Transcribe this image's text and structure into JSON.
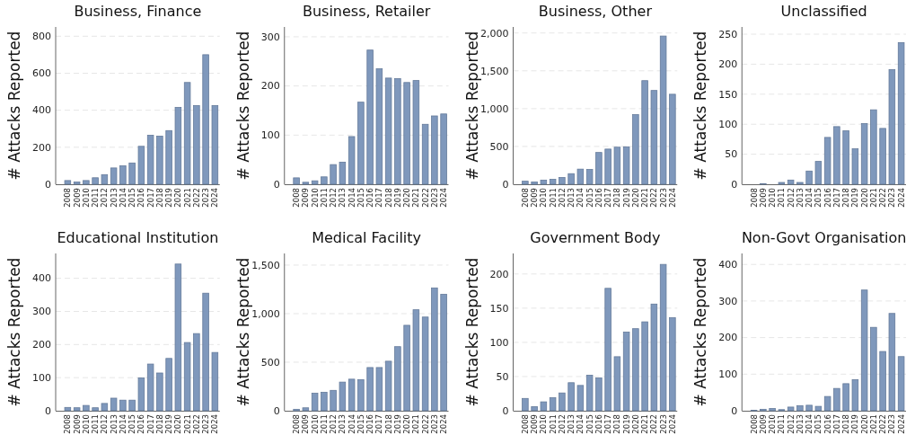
{
  "chart_data": [
    {
      "type": "bar",
      "title": "Business, Finance",
      "ylabel": "# Attacks Reported",
      "categories": [
        "2008",
        "2009",
        "2010",
        "2011",
        "2012",
        "2013",
        "2014",
        "2015",
        "2016",
        "2017",
        "2018",
        "2019",
        "2020",
        "2021",
        "2022",
        "2023",
        "2024"
      ],
      "values": [
        20,
        12,
        20,
        35,
        52,
        88,
        100,
        115,
        205,
        265,
        260,
        290,
        415,
        550,
        425,
        700,
        425
      ],
      "color": "#7892b8",
      "ylim": [
        0,
        850
      ],
      "yticks": [
        0,
        200,
        400,
        600,
        800
      ],
      "grid": "y"
    },
    {
      "type": "bar",
      "title": "Business, Retailer",
      "ylabel": "# Attacks Reported",
      "categories": [
        "2008",
        "2009",
        "2010",
        "2011",
        "2012",
        "2013",
        "2014",
        "2015",
        "2016",
        "2017",
        "2018",
        "2019",
        "2020",
        "2021",
        "2022",
        "2023",
        "2024"
      ],
      "values": [
        13,
        4,
        7,
        15,
        40,
        45,
        97,
        167,
        273,
        235,
        216,
        215,
        207,
        211,
        122,
        139,
        143
      ],
      "color": "#7892b8",
      "ylim": [
        0,
        320
      ],
      "yticks": [
        0,
        100,
        200,
        300
      ],
      "grid": "y"
    },
    {
      "type": "bar",
      "title": "Business, Other",
      "ylabel": "# Attacks Reported",
      "categories": [
        "2008",
        "2009",
        "2010",
        "2011",
        "2012",
        "2013",
        "2014",
        "2015",
        "2016",
        "2017",
        "2018",
        "2019",
        "2020",
        "2021",
        "2022",
        "2023",
        "2024"
      ],
      "values": [
        40,
        30,
        55,
        65,
        90,
        140,
        200,
        195,
        420,
        465,
        490,
        495,
        920,
        1370,
        1240,
        1960,
        1190
      ],
      "color": "#7892b8",
      "ylim": [
        0,
        2080
      ],
      "yticks": [
        0,
        500,
        {
          "value": 1000,
          "label": "1,000"
        },
        {
          "value": 1500,
          "label": "1,500"
        },
        {
          "value": 2000,
          "label": "2,000"
        }
      ],
      "grid": "y"
    },
    {
      "type": "bar",
      "title": "Unclassified",
      "ylabel": "# Attacks Reported",
      "categories": [
        "2008",
        "2009",
        "2010",
        "2011",
        "2012",
        "2013",
        "2014",
        "2015",
        "2016",
        "2017",
        "2018",
        "2019",
        "2020",
        "2021",
        "2022",
        "2023",
        "2024"
      ],
      "values": [
        0,
        1,
        0,
        3,
        7,
        3,
        22,
        38,
        78,
        96,
        89,
        59,
        101,
        124,
        93,
        191,
        236
      ],
      "color": "#7892b8",
      "ylim": [
        0,
        262
      ],
      "yticks": [
        0,
        50,
        100,
        150,
        200,
        250
      ],
      "grid": "y"
    },
    {
      "type": "bar",
      "title": "Educational Institution",
      "ylabel": "# Attacks Reported",
      "categories": [
        "2008",
        "2009",
        "2010",
        "2011",
        "2012",
        "2013",
        "2014",
        "2015",
        "2016",
        "2017",
        "2018",
        "2019",
        "2020",
        "2021",
        "2022",
        "2023",
        "2024"
      ],
      "values": [
        10,
        9,
        16,
        9,
        22,
        38,
        32,
        32,
        99,
        141,
        114,
        158,
        443,
        206,
        233,
        355,
        176
      ],
      "color": "#7892b8",
      "ylim": [
        0,
        475
      ],
      "yticks": [
        0,
        100,
        200,
        300,
        400
      ],
      "grid": "y"
    },
    {
      "type": "bar",
      "title": "Medical Facility",
      "ylabel": "# Attacks Reported",
      "categories": [
        "2008",
        "2009",
        "2010",
        "2011",
        "2012",
        "2013",
        "2014",
        "2015",
        "2016",
        "2017",
        "2018",
        "2019",
        "2020",
        "2021",
        "2022",
        "2023",
        "2024"
      ],
      "values": [
        15,
        30,
        180,
        190,
        210,
        295,
        325,
        320,
        445,
        445,
        510,
        660,
        880,
        1040,
        965,
        1265,
        1200
      ],
      "color": "#7892b8",
      "ylim": [
        0,
        1620
      ],
      "yticks": [
        0,
        500,
        {
          "value": 1000,
          "label": "1,000"
        },
        {
          "value": 1500,
          "label": "1,500"
        }
      ],
      "grid": "y"
    },
    {
      "type": "bar",
      "title": "Government Body",
      "ylabel": "# Attacks Reported",
      "categories": [
        "2008",
        "2009",
        "2010",
        "2011",
        "2012",
        "2013",
        "2014",
        "2015",
        "2016",
        "2017",
        "2018",
        "2019",
        "2020",
        "2021",
        "2022",
        "2023",
        "2024"
      ],
      "values": [
        18,
        6,
        13,
        19,
        26,
        41,
        37,
        52,
        48,
        179,
        79,
        115,
        120,
        130,
        156,
        214,
        136
      ],
      "color": "#7892b8",
      "ylim": [
        0,
        230
      ],
      "yticks": [
        0,
        50,
        100,
        150,
        200
      ],
      "grid": "y"
    },
    {
      "type": "bar",
      "title": "Non-Govt Organisation",
      "ylabel": "# Attacks Reported",
      "categories": [
        "2008",
        "2009",
        "2010",
        "2011",
        "2012",
        "2013",
        "2014",
        "2015",
        "2016",
        "2017",
        "2018",
        "2019",
        "2020",
        "2021",
        "2022",
        "2023",
        "2024"
      ],
      "values": [
        1,
        4,
        6,
        3,
        10,
        14,
        15,
        12,
        39,
        61,
        74,
        85,
        330,
        228,
        162,
        266,
        148
      ],
      "color": "#7892b8",
      "ylim": [
        0,
        430
      ],
      "yticks": [
        0,
        100,
        200,
        300,
        400
      ],
      "grid": "y"
    }
  ]
}
